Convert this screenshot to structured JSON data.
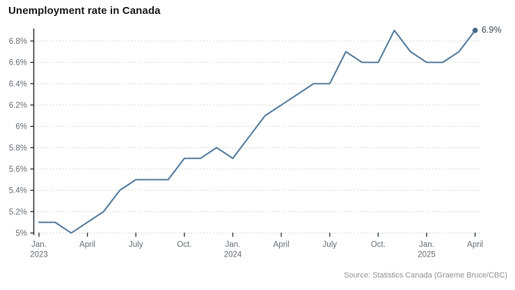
{
  "title": "Unemployment rate in Canada",
  "source": "Source: Statistics Canada (Graeme Bruce/CBC)",
  "end_label": "6.9%",
  "colors": {
    "background": "#ffffff",
    "line": "#5b80a0",
    "marker": "#44698c",
    "grid": "#c9cdd0",
    "axis": "#33373a",
    "tick_label": "#666e76",
    "title": "#1a1a1a",
    "end_label": "#3d4852",
    "source": "#909090"
  },
  "chart_data": {
    "type": "line",
    "title": "Unemployment rate in Canada",
    "xlabel": "",
    "ylabel": "",
    "grid": "horizontal-dotted",
    "legend": "none",
    "ylim": [
      5.0,
      6.9
    ],
    "x": [
      "Jan. 2023",
      "Feb. 2023",
      "Mar. 2023",
      "Apr. 2023",
      "May 2023",
      "Jun. 2023",
      "Jul. 2023",
      "Aug. 2023",
      "Sep. 2023",
      "Oct. 2023",
      "Nov. 2023",
      "Dec. 2023",
      "Jan. 2024",
      "Feb. 2024",
      "Mar. 2024",
      "Apr. 2024",
      "May 2024",
      "Jun. 2024",
      "Jul. 2024",
      "Aug. 2024",
      "Sep. 2024",
      "Oct. 2024",
      "Nov. 2024",
      "Dec. 2024",
      "Jan. 2025",
      "Feb. 2025",
      "Mar. 2025",
      "Apr. 2025"
    ],
    "values": [
      5.1,
      5.1,
      5.0,
      5.1,
      5.2,
      5.4,
      5.5,
      5.5,
      5.5,
      5.7,
      5.7,
      5.8,
      5.7,
      5.9,
      6.1,
      6.2,
      6.3,
      6.4,
      6.4,
      6.7,
      6.6,
      6.6,
      6.9,
      6.7,
      6.6,
      6.6,
      6.7,
      6.9
    ],
    "yticks": [
      {
        "value": 5.0,
        "label": "5%"
      },
      {
        "value": 5.2,
        "label": "5.2%"
      },
      {
        "value": 5.4,
        "label": "5.4%"
      },
      {
        "value": 5.6,
        "label": "5.6%"
      },
      {
        "value": 5.8,
        "label": "5.8%"
      },
      {
        "value": 6.0,
        "label": "6%"
      },
      {
        "value": 6.2,
        "label": "6.2%"
      },
      {
        "value": 6.4,
        "label": "6.4%"
      },
      {
        "value": 6.6,
        "label": "6.6%"
      },
      {
        "value": 6.8,
        "label": "6.8%"
      }
    ],
    "xticks": [
      {
        "index": 0,
        "label": "Jan.",
        "sublabel": "2023"
      },
      {
        "index": 3,
        "label": "April",
        "sublabel": ""
      },
      {
        "index": 6,
        "label": "July",
        "sublabel": ""
      },
      {
        "index": 9,
        "label": "Oct.",
        "sublabel": ""
      },
      {
        "index": 12,
        "label": "Jan.",
        "sublabel": "2024"
      },
      {
        "index": 15,
        "label": "April",
        "sublabel": ""
      },
      {
        "index": 18,
        "label": "July",
        "sublabel": ""
      },
      {
        "index": 21,
        "label": "Oct.",
        "sublabel": ""
      },
      {
        "index": 24,
        "label": "Jan.",
        "sublabel": "2025"
      },
      {
        "index": 27,
        "label": "April",
        "sublabel": ""
      }
    ],
    "end_annotation": {
      "label": "6.9%",
      "value": 6.9,
      "x": "Apr. 2025"
    }
  }
}
